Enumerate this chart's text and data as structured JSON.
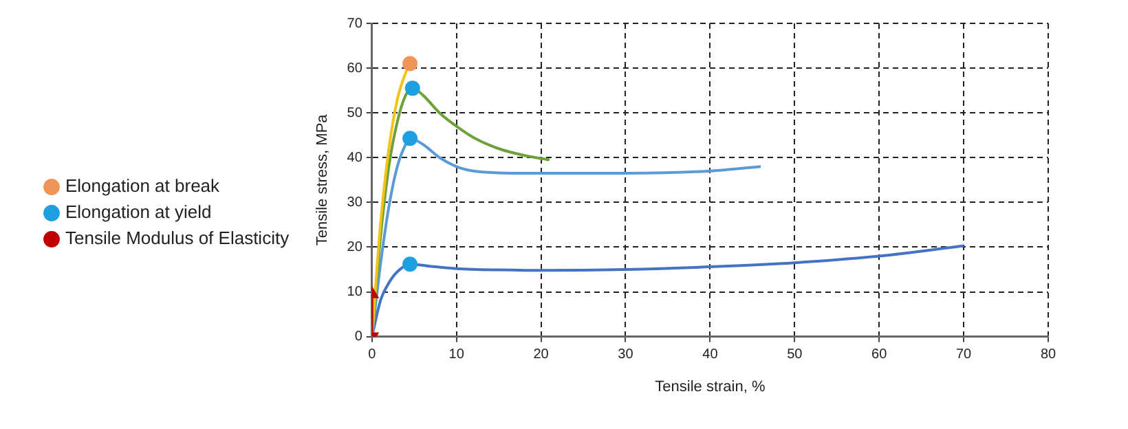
{
  "chart_data": {
    "type": "line",
    "xlabel": "Tensile strain, %",
    "ylabel": "Tensile stress, MPa",
    "xlim": [
      0,
      80
    ],
    "xticks": [
      0,
      10,
      20,
      30,
      40,
      50,
      60,
      70,
      80
    ],
    "ylim": [
      0,
      70
    ],
    "yticks": [
      0,
      10,
      20,
      30,
      40,
      50,
      60,
      70
    ],
    "grid": true,
    "legend": "left",
    "line_style": "solid",
    "series": [
      {
        "name": "Elongation at break",
        "type": "scatter",
        "marker": "circle",
        "color": "#f0955a",
        "x": [
          4.5
        ],
        "values": [
          61
        ]
      },
      {
        "name": "Elongation at yield",
        "type": "scatter",
        "marker": "circle",
        "color": "#1ea0e0",
        "x": [
          4.8,
          4.5,
          4.5
        ],
        "values": [
          55.5,
          44.3,
          16.2
        ]
      },
      {
        "name": "Tensile Modulus of Elasticity",
        "marker": "triangle",
        "color": "#c00000",
        "x": [
          0,
          0
        ],
        "values": [
          0,
          9.5
        ]
      },
      {
        "marker": "none",
        "color": "#f2c318",
        "x": [
          0,
          1,
          2,
          3,
          4,
          4.5
        ],
        "values": [
          0,
          25,
          42,
          53,
          59,
          61
        ]
      },
      {
        "marker": "none",
        "color": "#70a03c",
        "x": [
          0,
          1,
          2,
          3,
          4,
          4.8,
          6,
          8,
          10,
          12,
          15,
          18,
          21
        ],
        "values": [
          0,
          22,
          38,
          48,
          54,
          55.5,
          54,
          50,
          47,
          44.5,
          42,
          40.5,
          39.5
        ]
      },
      {
        "marker": "none",
        "color": "#5b9bd5",
        "x": [
          0,
          1,
          2,
          3,
          4,
          4.5,
          6,
          8,
          10,
          12,
          15,
          20,
          30,
          40,
          46
        ],
        "values": [
          0,
          16,
          29,
          38,
          43,
          44.3,
          43,
          40,
          38,
          37,
          36.6,
          36.5,
          36.5,
          37,
          38
        ]
      },
      {
        "marker": "none",
        "color": "#4472c4",
        "x": [
          0,
          1,
          2,
          3,
          4.5,
          7,
          10,
          15,
          20,
          30,
          40,
          50,
          60,
          70
        ],
        "values": [
          0,
          8,
          12,
          14.5,
          16.2,
          15.7,
          15.2,
          14.9,
          14.8,
          15,
          15.6,
          16.5,
          18,
          20.3
        ]
      }
    ]
  }
}
